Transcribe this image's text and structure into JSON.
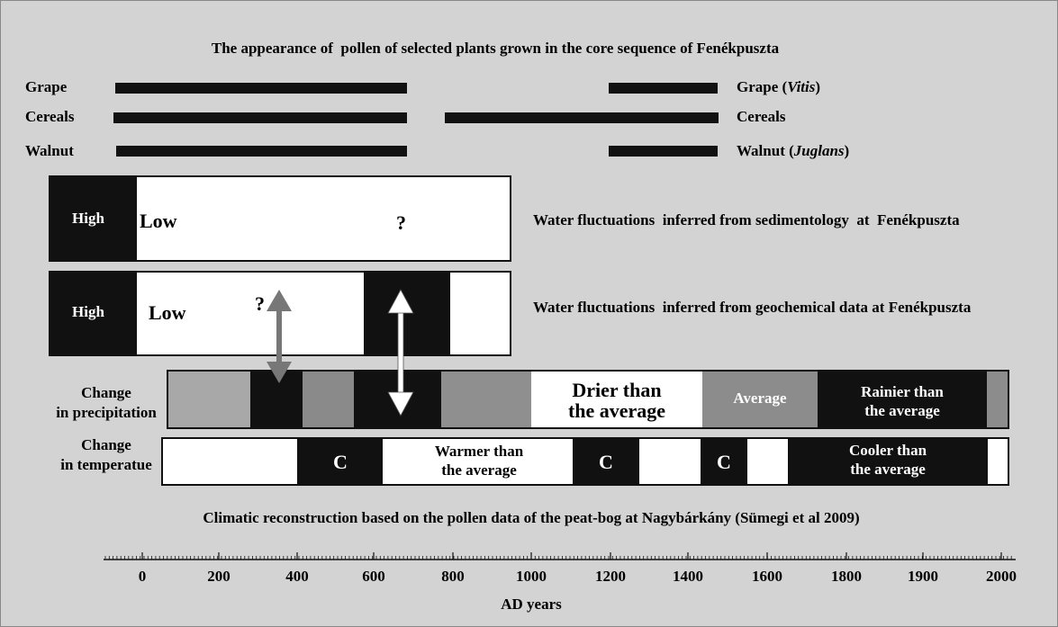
{
  "title": "The appearance of  pollen of selected plants grown in the core sequence of Fenékpuszta",
  "pollen": {
    "left": [
      "Grape",
      "Cereals",
      "Walnut"
    ],
    "right": [
      [
        "Grape (",
        "Vitis",
        ")"
      ],
      [
        "Cereals"
      ],
      [
        "Walnut (",
        "Juglans",
        ")"
      ]
    ]
  },
  "sedimentology": {
    "high": "High",
    "low": "Low",
    "question": "?",
    "caption": "Water fluctuations  inferred from sedimentology  at  Fenékpuszta"
  },
  "geochemical": {
    "high": "High",
    "low": "Low",
    "question": "?",
    "caption": "Water fluctuations  inferred from geochemical data at Fenékpuszta"
  },
  "precipitation": {
    "label": [
      "Change",
      "in precipitation"
    ],
    "drier": [
      "Drier than",
      "the average"
    ],
    "average": "Average",
    "rainier": [
      "Rainier than",
      "the average"
    ]
  },
  "temperature": {
    "label": [
      "Change",
      "in temperatue"
    ],
    "cold": [
      "C",
      "C",
      "C"
    ],
    "warmer": [
      "Warmer than",
      "the average"
    ],
    "cooler": [
      "Cooler than",
      "the average"
    ]
  },
  "reconstruction_caption": "Climatic reconstruction based on the pollen data of the peat-bog at Nagybárkány (Sümegi et al 2009)",
  "axis": {
    "ticks": [
      0,
      200,
      400,
      600,
      800,
      1000,
      1200,
      1400,
      1600,
      1800,
      1900,
      2000
    ],
    "label": "AD years"
  }
}
